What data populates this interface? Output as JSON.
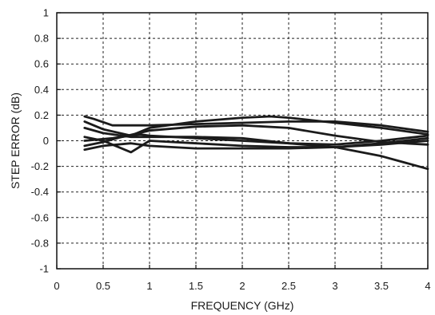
{
  "chart_data": {
    "type": "line",
    "xlabel": "FREQUENCY (GHz)",
    "ylabel": "STEP ERROR (dB)",
    "xlim": [
      0,
      4
    ],
    "ylim": [
      -1,
      1
    ],
    "x_ticks": [
      0,
      0.5,
      1,
      1.5,
      2,
      2.5,
      3,
      3.5,
      4
    ],
    "x_tick_labels": [
      "0",
      "0.5",
      "1",
      "1.5",
      "2",
      "2.5",
      "3",
      "3.5",
      "4"
    ],
    "y_ticks": [
      1,
      0.8,
      0.6,
      0.4,
      0.2,
      0,
      -0.2,
      -0.4,
      -0.6,
      -0.8,
      -1
    ],
    "y_tick_labels": [
      "1",
      "0.8",
      "0.6",
      "0.4",
      "0.2",
      "0",
      "-0.2",
      "-0.4",
      "-0.6",
      "-0.8",
      "-1"
    ],
    "grid": true,
    "legend": "none",
    "line_color": "#1b1b1b",
    "series": [
      {
        "x": [
          0.3,
          0.4,
          0.6,
          1.0,
          1.5,
          2.0,
          2.5,
          3.0,
          3.5,
          4.0
        ],
        "y": [
          0.19,
          0.17,
          0.12,
          0.12,
          0.13,
          0.14,
          0.15,
          0.15,
          0.12,
          0.07
        ]
      },
      {
        "x": [
          0.3,
          0.5,
          0.8,
          1.0,
          1.5,
          2.0,
          2.3,
          2.5,
          3.0,
          3.5,
          4.0
        ],
        "y": [
          0.15,
          0.09,
          0.04,
          0.1,
          0.15,
          0.18,
          0.19,
          0.18,
          0.14,
          0.1,
          0.05
        ]
      },
      {
        "x": [
          0.3,
          0.5,
          0.8,
          1.0,
          1.5,
          2.0,
          2.5,
          3.0,
          3.5,
          4.0
        ],
        "y": [
          0.1,
          0.06,
          0.03,
          0.03,
          0.03,
          0.02,
          -0.02,
          -0.05,
          -0.12,
          -0.22
        ]
      },
      {
        "x": [
          0.3,
          0.5,
          0.6,
          0.8,
          1.0,
          1.5,
          2.0,
          2.5,
          3.0,
          3.5,
          4.0
        ],
        "y": [
          0.03,
          0.0,
          -0.03,
          -0.09,
          0.0,
          -0.02,
          -0.04,
          -0.05,
          -0.05,
          -0.03,
          0.0
        ]
      },
      {
        "x": [
          0.3,
          0.5,
          0.7,
          1.0,
          1.5,
          2.0,
          2.5,
          3.0,
          3.5,
          4.0
        ],
        "y": [
          -0.04,
          -0.01,
          0.03,
          0.08,
          0.11,
          0.12,
          0.1,
          0.04,
          -0.01,
          -0.03
        ]
      },
      {
        "x": [
          0.3,
          0.6,
          0.9,
          1.0,
          1.5,
          2.0,
          2.5,
          3.0,
          3.5,
          4.0
        ],
        "y": [
          0.0,
          0.02,
          0.05,
          0.04,
          0.02,
          0.0,
          -0.02,
          -0.03,
          0.0,
          0.04
        ]
      },
      {
        "x": [
          0.3,
          0.5,
          0.8,
          1.0,
          1.5,
          2.0,
          2.5,
          3.0,
          3.5,
          4.0
        ],
        "y": [
          -0.07,
          -0.04,
          -0.02,
          -0.04,
          -0.06,
          -0.06,
          -0.06,
          -0.05,
          -0.02,
          0.02
        ]
      }
    ]
  }
}
